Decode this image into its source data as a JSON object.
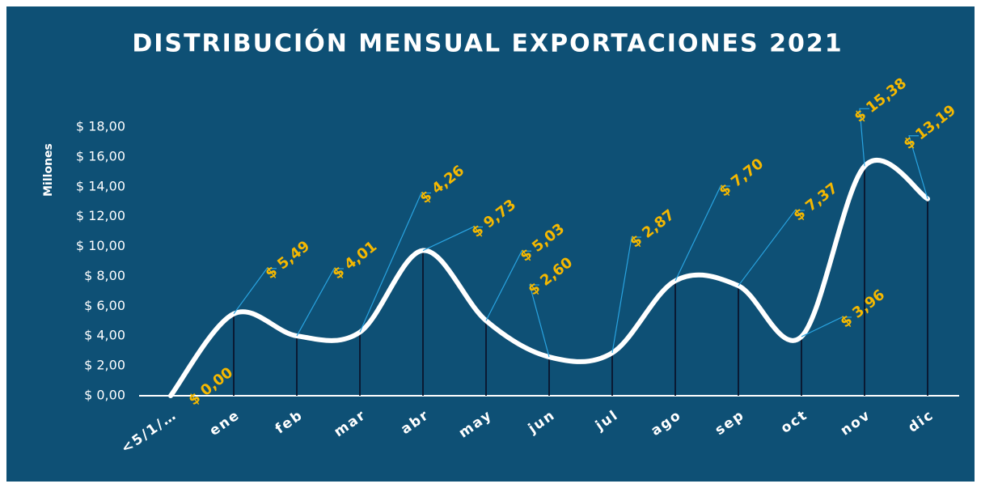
{
  "chart_data": {
    "type": "line",
    "title": "DISTRIBUCIÓN MENSUAL EXPORTACIONES 2021",
    "y_axis_label": "Millones",
    "categories": [
      "<5/1/…",
      "ene",
      "feb",
      "mar",
      "abr",
      "may",
      "jun",
      "jul",
      "ago",
      "sep",
      "oct",
      "nov",
      "dic"
    ],
    "values": [
      0,
      5.49,
      4.01,
      4.26,
      9.73,
      5.03,
      2.6,
      2.87,
      7.7,
      7.37,
      3.96,
      15.38,
      13.19
    ],
    "value_labels": [
      "$ 0,00",
      "$ 5,49",
      "$ 4,01",
      "$ 4,26",
      "$ 9,73",
      "$ 5,03",
      "$ 2,60",
      "$ 2,87",
      "$ 7,70",
      "$ 7,37",
      "$ 3,96",
      "$ 15,38",
      "$ 13,19"
    ],
    "color": "#ffffff",
    "label_color": "#f5b800",
    "background": "#0e5075",
    "ylim": [
      0,
      18
    ],
    "yticks": [
      {
        "value": 0,
        "label": "$ 0,00"
      },
      {
        "value": 2,
        "label": "$ 2,00"
      },
      {
        "value": 4,
        "label": "$ 4,00"
      },
      {
        "value": 6,
        "label": "$ 6,00"
      },
      {
        "value": 8,
        "label": "$ 8,00"
      },
      {
        "value": 10,
        "label": "$ 10,00"
      },
      {
        "value": 12,
        "label": "$ 12,00"
      },
      {
        "value": 14,
        "label": "$ 14,00"
      },
      {
        "value": 16,
        "label": "$ 16,00"
      },
      {
        "value": 18,
        "label": "$ 18,00"
      }
    ]
  }
}
